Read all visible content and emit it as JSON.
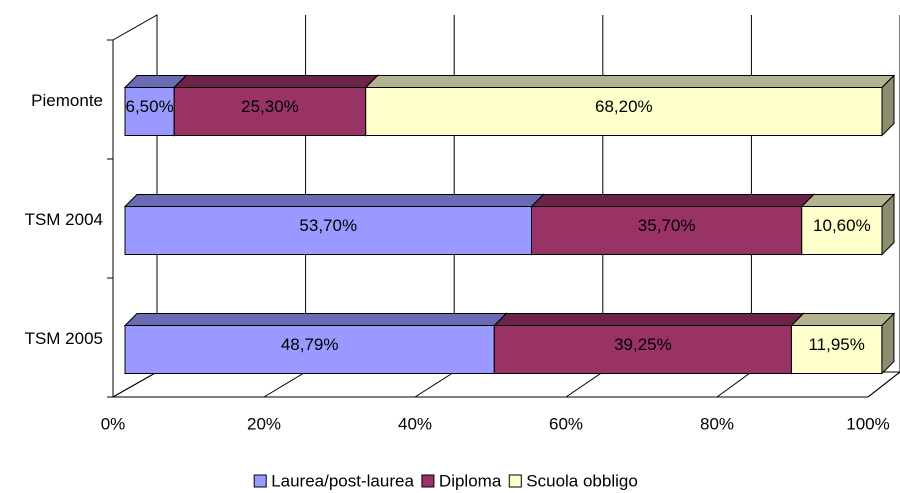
{
  "chart_data": {
    "type": "bar3d-stacked-horizontal",
    "categories": [
      "Piemonte",
      "TSM 2004",
      "TSM 2005"
    ],
    "series": [
      {
        "name": "Laurea/post-laurea",
        "color": "#9999ff",
        "values": [
          6.5,
          53.7,
          48.79
        ],
        "value_labels": [
          "6,50%",
          "53,70%",
          "48,79%"
        ]
      },
      {
        "name": "Diploma",
        "color": "#993366",
        "values": [
          25.3,
          35.7,
          39.25
        ],
        "value_labels": [
          "25,30%",
          "35,70%",
          "39,25%"
        ]
      },
      {
        "name": "Scuola obbligo",
        "color": "#ffffcc",
        "values": [
          68.2,
          10.6,
          11.95
        ],
        "value_labels": [
          "68,20%",
          "10,60%",
          "11,95%"
        ]
      }
    ],
    "xlim": [
      0,
      100
    ],
    "xticks": [
      {
        "value": 0,
        "label": "0%"
      },
      {
        "value": 20,
        "label": "20%"
      },
      {
        "value": 40,
        "label": "40%"
      },
      {
        "value": 60,
        "label": "60%"
      },
      {
        "value": 80,
        "label": "80%"
      },
      {
        "value": 100,
        "label": "100%"
      }
    ],
    "grid": true
  }
}
